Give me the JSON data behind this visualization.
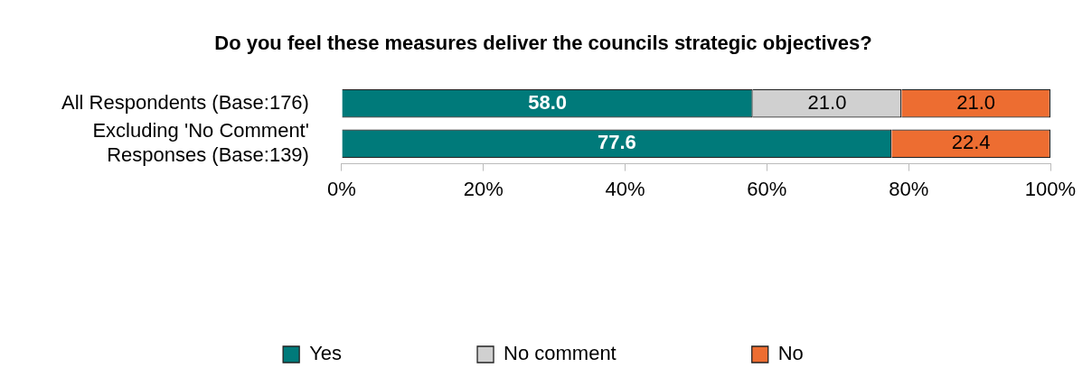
{
  "chart_data": {
    "type": "bar",
    "orientation": "horizontal",
    "stacked": true,
    "title": "Do you feel these measures deliver the councils strategic objectives?",
    "categories": [
      "All Respondents (Base:176)",
      "Excluding 'No Comment' Responses (Base:139)"
    ],
    "series": [
      {
        "name": "Yes",
        "color": "#007a7a",
        "values": [
          58.0,
          77.6
        ],
        "value_labels": [
          "58.0",
          "77.6"
        ]
      },
      {
        "name": "No comment",
        "color": "#d0d0d0",
        "values": [
          21.0,
          null
        ],
        "value_labels": [
          "21.0",
          null
        ]
      },
      {
        "name": "No",
        "color": "#ed6d31",
        "values": [
          21.0,
          22.4
        ],
        "value_labels": [
          "21.0",
          "22.4"
        ]
      }
    ],
    "xlim": [
      0,
      100
    ],
    "xticks": [
      {
        "value": 0,
        "label": "0%"
      },
      {
        "value": 20,
        "label": "20%"
      },
      {
        "value": 40,
        "label": "40%"
      },
      {
        "value": 60,
        "label": "60%"
      },
      {
        "value": 80,
        "label": "80%"
      },
      {
        "value": 100,
        "label": "100%"
      }
    ],
    "grid": false,
    "legend": "bottom"
  }
}
